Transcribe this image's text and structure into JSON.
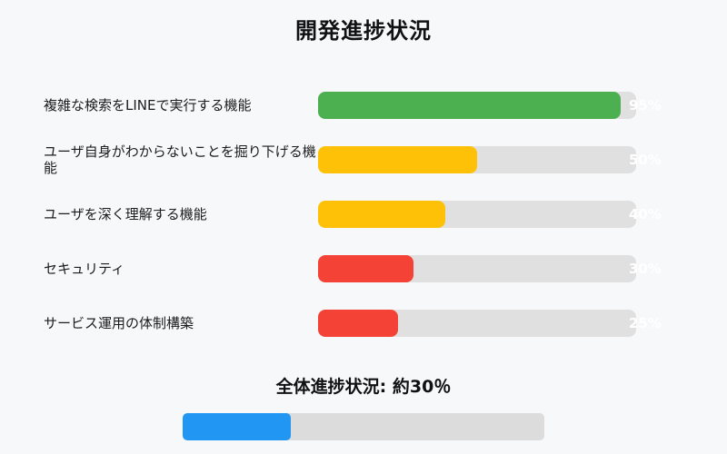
{
  "title": "開発進捗状況",
  "rows": [
    {
      "label": "複雑な検索をLINEで実行する機能",
      "value": 95,
      "percent_label": "95%",
      "color": "#4caf50"
    },
    {
      "label": "ユーザ自身がわからないことを掘り下げる機能",
      "value": 50,
      "percent_label": "50%",
      "color": "#ffc107"
    },
    {
      "label": "ユーザを深く理解する機能",
      "value": 40,
      "percent_label": "40%",
      "color": "#ffc107"
    },
    {
      "label": "セキュリティ",
      "value": 30,
      "percent_label": "30%",
      "color": "#f44336"
    },
    {
      "label": "サービス運用の体制構築",
      "value": 25,
      "percent_label": "25%",
      "color": "#f44336"
    }
  ],
  "overall": {
    "heading": "全体進捗状況: 約30％",
    "value": 30,
    "color": "#2196f3"
  },
  "colors": {
    "background": "#f7f8fa",
    "track": "#e0e0e0",
    "overall_track": "#dcdcdc",
    "green": "#4caf50",
    "yellow": "#ffc107",
    "red": "#f44336",
    "blue": "#2196f3",
    "percent_text": "#ffffff"
  },
  "chart_data": {
    "type": "bar",
    "orientation": "horizontal",
    "title": "開発進捗状況",
    "categories": [
      "複雑な検索をLINEで実行する機能",
      "ユーザ自身がわからないことを掘り下げる機能",
      "ユーザを深く理解する機能",
      "セキュリティ",
      "サービス運用の体制構築"
    ],
    "values": [
      95,
      50,
      40,
      30,
      25
    ],
    "value_labels": [
      "95%",
      "50%",
      "40%",
      "30%",
      "25%"
    ],
    "bar_colors": [
      "#4caf50",
      "#ffc107",
      "#ffc107",
      "#f44336",
      "#f44336"
    ],
    "xlim": [
      0,
      100
    ],
    "grid": false,
    "legend": false,
    "overall": {
      "label": "全体進捗状況: 約30％",
      "value": 30,
      "color": "#2196f3"
    }
  }
}
